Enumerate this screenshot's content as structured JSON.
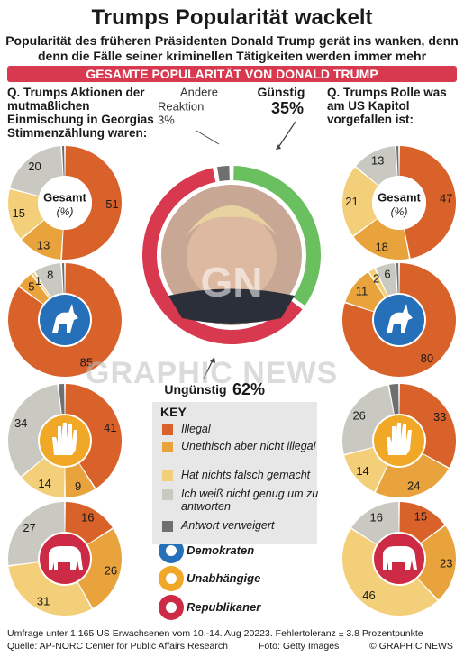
{
  "header": {
    "title": "Trumps Popularität wackelt",
    "subtitle1": "Popularität des früheren Präsidenten Donald Trump gerät ins wanken, denn",
    "subtitle2": "denn die Fälle seiner kriminellen Tätigkeiten werden immer mehr",
    "bar": "GESAMTE POPULARITÄT VON DONALD TRUMP"
  },
  "questions": {
    "left": "Q. Trumps Aktionen der mutmaßlichen Einmischung in Georgias Stimmenzählung waren:",
    "right": "Q. Trumps Rolle was am US Kapitol vorgefallen ist:"
  },
  "colors": {
    "illegal": "#d9622b",
    "unethical": "#e8a33c",
    "nothing_wrong": "#f4cf7a",
    "dont_know": "#c9c9c1",
    "refused": "#6f6f6f",
    "favorable": "#6abf5e",
    "unfavorable": "#d9394f",
    "dem": "#2570b8",
    "ind": "#f0a826",
    "rep": "#cc2a45"
  },
  "center_labels": {
    "other_line1": "Andere",
    "other_line2": "Reaktion",
    "other_pct": "3%",
    "favorable": "Günstig",
    "favorable_pct": "35%",
    "unfavorable": "Ungünstig",
    "unfavorable_pct": "62%"
  },
  "donut_labels": {
    "gesamt": "Gesamt",
    "pct": "(%)"
  },
  "key": {
    "title": "KEY",
    "items": [
      {
        "label": "Illegal",
        "color": "#d9622b"
      },
      {
        "label": "Unethisch aber nicht illegal",
        "color": "#e8a33c"
      },
      {
        "label": "Hat nichts falsch gemacht",
        "color": "#f4cf7a"
      },
      {
        "label": "Ich weiß nicht genug um zu antworten",
        "color": "#c9c9c1"
      },
      {
        "label": "Antwort verweigert",
        "color": "#6f6f6f"
      }
    ],
    "parties": [
      "Demokraten",
      "Unabhängige",
      "Republikaner"
    ]
  },
  "watermark": "GRAPHIC NEWS",
  "footer": {
    "line1": "Umfrage unter 1.165 US Erwachsenen vom 10.-14. Aug 20223. Fehlertoleranz ± 3.8 Prozentpunkte",
    "source": "Quelle: AP-NORC Center for Public Affairs Research",
    "photo": "Foto: Getty Images",
    "credit": "© GRAPHIC NEWS"
  },
  "chart_data": [
    {
      "type": "pie",
      "title": "Gesamte Popularität von Donald Trump",
      "categories": [
        "Günstig",
        "Ungünstig",
        "Andere Reaktion"
      ],
      "values": [
        35,
        62,
        3
      ]
    },
    {
      "type": "pie",
      "title": "Q. Trumps Aktionen der mutmaßlichen Einmischung in Georgias Stimmenzählung waren:",
      "categories": [
        "Illegal",
        "Unethisch aber nicht illegal",
        "Hat nichts falsch gemacht",
        "Ich weiß nicht genug um zu antworten",
        "Antwort verweigert"
      ],
      "series": [
        {
          "name": "Gesamt",
          "values": [
            51,
            13,
            15,
            20,
            1
          ]
        },
        {
          "name": "Demokraten",
          "values": [
            85,
            5,
            1,
            8,
            1
          ]
        },
        {
          "name": "Unabhängige",
          "values": [
            41,
            9,
            14,
            34,
            2
          ]
        },
        {
          "name": "Republikaner",
          "values": [
            16,
            26,
            31,
            27,
            0
          ]
        }
      ]
    },
    {
      "type": "pie",
      "title": "Q. Trumps Rolle was am US Kapitol vorgefallen ist:",
      "categories": [
        "Illegal",
        "Unethisch aber nicht illegal",
        "Hat nichts falsch gemacht",
        "Ich weiß nicht genug um zu antworten",
        "Antwort verweigert"
      ],
      "series": [
        {
          "name": "Gesamt",
          "values": [
            47,
            18,
            21,
            13,
            1
          ]
        },
        {
          "name": "Demokraten",
          "values": [
            80,
            11,
            2,
            6,
            1
          ]
        },
        {
          "name": "Unabhängige",
          "values": [
            33,
            24,
            14,
            26,
            3
          ]
        },
        {
          "name": "Republikaner",
          "values": [
            15,
            23,
            46,
            16,
            0
          ]
        }
      ]
    }
  ]
}
